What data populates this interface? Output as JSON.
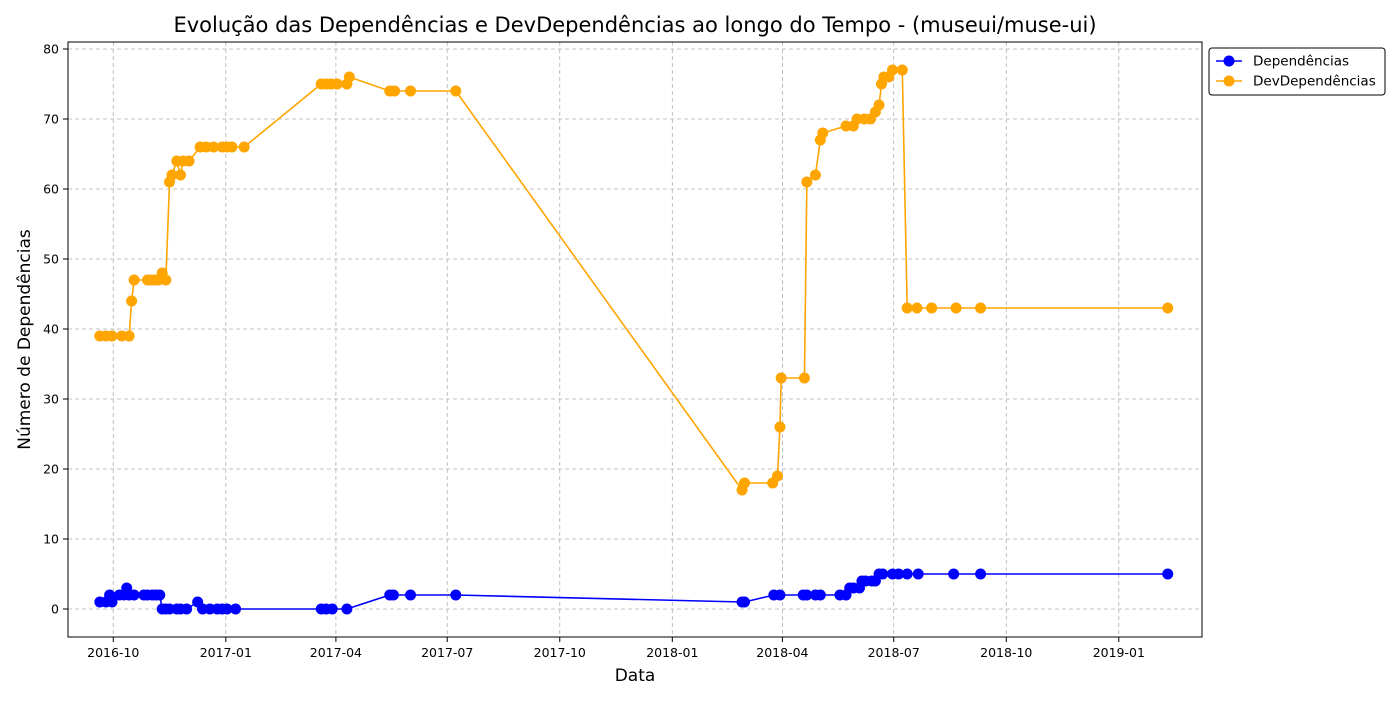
{
  "chart_data": {
    "type": "line",
    "title": "Evolução das Dependências e DevDependências ao longo do Tempo - (museui/muse-ui)",
    "xlabel": "Data",
    "ylabel": "Número de Dependências",
    "xlim": [
      "2016-08-25",
      "2019-03-10"
    ],
    "ylim": [
      -4,
      81
    ],
    "grid": true,
    "legend_position": "top-right-outside",
    "x_ticks": [
      "2016-10",
      "2017-01",
      "2017-04",
      "2017-07",
      "2017-10",
      "2018-01",
      "2018-04",
      "2018-07",
      "2018-10",
      "2019-01"
    ],
    "y_ticks": [
      0,
      10,
      20,
      30,
      40,
      50,
      60,
      70,
      80
    ],
    "series": [
      {
        "name": "Dependências",
        "color": "#0000ff",
        "points": [
          [
            "2016-09-20",
            1
          ],
          [
            "2016-09-25",
            1
          ],
          [
            "2016-09-28",
            2
          ],
          [
            "2016-09-30",
            1
          ],
          [
            "2016-10-06",
            2
          ],
          [
            "2016-10-10",
            2
          ],
          [
            "2016-10-12",
            3
          ],
          [
            "2016-10-14",
            2
          ],
          [
            "2016-10-18",
            2
          ],
          [
            "2016-10-26",
            2
          ],
          [
            "2016-10-29",
            2
          ],
          [
            "2016-11-02",
            2
          ],
          [
            "2016-11-05",
            2
          ],
          [
            "2016-11-08",
            2
          ],
          [
            "2016-11-10",
            0
          ],
          [
            "2016-11-13",
            0
          ],
          [
            "2016-11-16",
            0
          ],
          [
            "2016-11-22",
            0
          ],
          [
            "2016-11-25",
            0
          ],
          [
            "2016-11-30",
            0
          ],
          [
            "2016-12-09",
            1
          ],
          [
            "2016-12-13",
            0
          ],
          [
            "2016-12-19",
            0
          ],
          [
            "2016-12-25",
            0
          ],
          [
            "2016-12-29",
            0
          ],
          [
            "2017-01-02",
            0
          ],
          [
            "2017-01-09",
            0
          ],
          [
            "2017-03-20",
            0
          ],
          [
            "2017-03-24",
            0
          ],
          [
            "2017-03-29",
            0
          ],
          [
            "2017-04-10",
            0
          ],
          [
            "2017-05-15",
            2
          ],
          [
            "2017-05-18",
            2
          ],
          [
            "2017-06-01",
            2
          ],
          [
            "2017-07-08",
            2
          ],
          [
            "2018-02-27",
            1
          ],
          [
            "2018-03-01",
            1
          ],
          [
            "2018-03-25",
            2
          ],
          [
            "2018-03-30",
            2
          ],
          [
            "2018-04-18",
            2
          ],
          [
            "2018-04-21",
            2
          ],
          [
            "2018-04-28",
            2
          ],
          [
            "2018-05-02",
            2
          ],
          [
            "2018-05-18",
            2
          ],
          [
            "2018-05-23",
            2
          ],
          [
            "2018-05-26",
            3
          ],
          [
            "2018-05-29",
            3
          ],
          [
            "2018-06-03",
            3
          ],
          [
            "2018-06-05",
            4
          ],
          [
            "2018-06-08",
            4
          ],
          [
            "2018-06-13",
            4
          ],
          [
            "2018-06-16",
            4
          ],
          [
            "2018-06-19",
            5
          ],
          [
            "2018-06-22",
            5
          ],
          [
            "2018-06-30",
            5
          ],
          [
            "2018-07-05",
            5
          ],
          [
            "2018-07-12",
            5
          ],
          [
            "2018-07-21",
            5
          ],
          [
            "2018-08-19",
            5
          ],
          [
            "2018-09-10",
            5
          ],
          [
            "2019-02-10",
            5
          ]
        ]
      },
      {
        "name": "DevDependências",
        "color": "#ffa500",
        "points": [
          [
            "2016-09-20",
            39
          ],
          [
            "2016-09-25",
            39
          ],
          [
            "2016-09-30",
            39
          ],
          [
            "2016-10-08",
            39
          ],
          [
            "2016-10-14",
            39
          ],
          [
            "2016-10-16",
            44
          ],
          [
            "2016-10-18",
            47
          ],
          [
            "2016-10-29",
            47
          ],
          [
            "2016-11-01",
            47
          ],
          [
            "2016-11-04",
            47
          ],
          [
            "2016-11-07",
            47
          ],
          [
            "2016-11-10",
            48
          ],
          [
            "2016-11-13",
            47
          ],
          [
            "2016-11-16",
            61
          ],
          [
            "2016-11-18",
            62
          ],
          [
            "2016-11-22",
            64
          ],
          [
            "2016-11-25",
            62
          ],
          [
            "2016-11-27",
            64
          ],
          [
            "2016-12-02",
            64
          ],
          [
            "2016-12-11",
            66
          ],
          [
            "2016-12-16",
            66
          ],
          [
            "2016-12-22",
            66
          ],
          [
            "2016-12-29",
            66
          ],
          [
            "2017-01-02",
            66
          ],
          [
            "2017-01-06",
            66
          ],
          [
            "2017-01-16",
            66
          ],
          [
            "2017-03-20",
            75
          ],
          [
            "2017-03-24",
            75
          ],
          [
            "2017-03-28",
            75
          ],
          [
            "2017-04-02",
            75
          ],
          [
            "2017-04-10",
            75
          ],
          [
            "2017-04-12",
            76
          ],
          [
            "2017-05-15",
            74
          ],
          [
            "2017-05-19",
            74
          ],
          [
            "2017-06-01",
            74
          ],
          [
            "2017-07-08",
            74
          ],
          [
            "2018-02-27",
            17
          ],
          [
            "2018-03-01",
            18
          ],
          [
            "2018-03-24",
            18
          ],
          [
            "2018-03-28",
            19
          ],
          [
            "2018-03-30",
            26
          ],
          [
            "2018-03-31",
            33
          ],
          [
            "2018-04-19",
            33
          ],
          [
            "2018-04-21",
            61
          ],
          [
            "2018-04-28",
            62
          ],
          [
            "2018-05-02",
            67
          ],
          [
            "2018-05-04",
            68
          ],
          [
            "2018-05-23",
            69
          ],
          [
            "2018-05-29",
            69
          ],
          [
            "2018-06-01",
            70
          ],
          [
            "2018-06-07",
            70
          ],
          [
            "2018-06-12",
            70
          ],
          [
            "2018-06-16",
            71
          ],
          [
            "2018-06-19",
            72
          ],
          [
            "2018-06-21",
            75
          ],
          [
            "2018-06-23",
            76
          ],
          [
            "2018-06-27",
            76
          ],
          [
            "2018-06-30",
            77
          ],
          [
            "2018-07-08",
            77
          ],
          [
            "2018-07-12",
            43
          ],
          [
            "2018-07-20",
            43
          ],
          [
            "2018-08-01",
            43
          ],
          [
            "2018-08-21",
            43
          ],
          [
            "2018-09-10",
            43
          ],
          [
            "2019-02-10",
            43
          ]
        ]
      }
    ]
  }
}
